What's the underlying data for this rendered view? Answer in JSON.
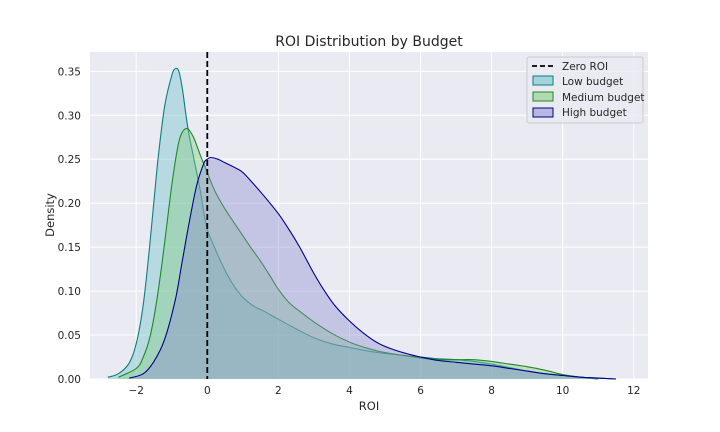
{
  "chart_data": {
    "type": "area",
    "title": "ROI Distribution by Budget",
    "xlabel": "ROI",
    "ylabel": "Density",
    "xlim": [
      -3.3,
      12.4
    ],
    "ylim": [
      0,
      0.372
    ],
    "xticks": [
      -2,
      0,
      2,
      4,
      6,
      8,
      10,
      12
    ],
    "yticks": [
      0.0,
      0.05,
      0.1,
      0.15,
      0.2,
      0.25,
      0.3,
      0.35
    ],
    "xtick_labels": [
      "−2",
      "0",
      "2",
      "4",
      "6",
      "8",
      "10",
      "12"
    ],
    "ytick_labels": [
      "0.00",
      "0.05",
      "0.10",
      "0.15",
      "0.20",
      "0.25",
      "0.30",
      "0.35"
    ],
    "grid": true,
    "legend_position": "top-right",
    "reference_line": {
      "label": "Zero ROI",
      "x": 0,
      "color": "#000000",
      "style": "dashed"
    },
    "series": [
      {
        "name": "Low budget",
        "line_color": "#0b7f7f",
        "fill_color": "#6cc0c8",
        "x": [
          -2.8,
          -2.5,
          -2.2,
          -2.0,
          -1.8,
          -1.6,
          -1.4,
          -1.2,
          -1.0,
          -0.9,
          -0.8,
          -0.7,
          -0.6,
          -0.5,
          -0.4,
          -0.3,
          -0.2,
          -0.1,
          0.0,
          0.2,
          0.4,
          0.6,
          0.8,
          1.0,
          1.3,
          1.6,
          2.0,
          2.5,
          3.0,
          3.5,
          4.0,
          4.5,
          5.0,
          5.5,
          6.0,
          6.5,
          7.0,
          7.5,
          8.0,
          8.5,
          9.0,
          9.5,
          10.0,
          10.5,
          11.0,
          11.5
        ],
        "y": [
          0.002,
          0.006,
          0.018,
          0.04,
          0.085,
          0.16,
          0.245,
          0.31,
          0.345,
          0.353,
          0.35,
          0.33,
          0.3,
          0.275,
          0.255,
          0.235,
          0.215,
          0.19,
          0.17,
          0.15,
          0.132,
          0.116,
          0.103,
          0.093,
          0.083,
          0.077,
          0.068,
          0.057,
          0.047,
          0.04,
          0.036,
          0.032,
          0.029,
          0.027,
          0.025,
          0.023,
          0.022,
          0.02,
          0.017,
          0.013,
          0.009,
          0.006,
          0.004,
          0.002,
          0.001,
          0.0
        ]
      },
      {
        "name": "Medium budget",
        "line_color": "#1f8a1f",
        "fill_color": "#80cc80",
        "x": [
          -2.5,
          -2.0,
          -1.8,
          -1.6,
          -1.4,
          -1.2,
          -1.0,
          -0.8,
          -0.6,
          -0.4,
          -0.2,
          0.0,
          0.2,
          0.4,
          0.6,
          0.8,
          1.0,
          1.2,
          1.5,
          1.8,
          2.0,
          2.3,
          2.6,
          3.0,
          3.5,
          4.0,
          4.5,
          5.0,
          5.5,
          6.0,
          6.5,
          7.0,
          7.5,
          8.0,
          8.5,
          9.0,
          9.5,
          10.0,
          10.5,
          11.0
        ],
        "y": [
          0.002,
          0.012,
          0.025,
          0.05,
          0.095,
          0.155,
          0.22,
          0.27,
          0.285,
          0.276,
          0.255,
          0.235,
          0.215,
          0.2,
          0.187,
          0.175,
          0.163,
          0.151,
          0.134,
          0.115,
          0.102,
          0.087,
          0.077,
          0.065,
          0.052,
          0.042,
          0.035,
          0.03,
          0.027,
          0.024,
          0.022,
          0.022,
          0.022,
          0.02,
          0.017,
          0.014,
          0.01,
          0.005,
          0.002,
          0.0
        ]
      },
      {
        "name": "High budget",
        "line_color": "#00008b",
        "fill_color": "#8c8ccf",
        "x": [
          -2.2,
          -1.8,
          -1.5,
          -1.2,
          -0.9,
          -0.7,
          -0.5,
          -0.3,
          -0.1,
          0.0,
          0.1,
          0.3,
          0.5,
          0.8,
          1.0,
          1.3,
          1.6,
          2.0,
          2.3,
          2.6,
          3.0,
          3.3,
          3.6,
          4.0,
          4.4,
          4.8,
          5.2,
          5.6,
          6.0,
          6.5,
          7.0,
          7.5,
          8.0,
          8.5,
          9.0,
          9.5,
          10.0,
          10.5,
          11.0,
          11.5
        ],
        "y": [
          0.001,
          0.006,
          0.02,
          0.045,
          0.09,
          0.135,
          0.18,
          0.22,
          0.245,
          0.25,
          0.252,
          0.25,
          0.246,
          0.24,
          0.235,
          0.222,
          0.208,
          0.188,
          0.17,
          0.15,
          0.12,
          0.1,
          0.083,
          0.066,
          0.052,
          0.041,
          0.034,
          0.029,
          0.025,
          0.021,
          0.019,
          0.017,
          0.015,
          0.012,
          0.009,
          0.006,
          0.004,
          0.002,
          0.001,
          0.0
        ]
      }
    ]
  }
}
